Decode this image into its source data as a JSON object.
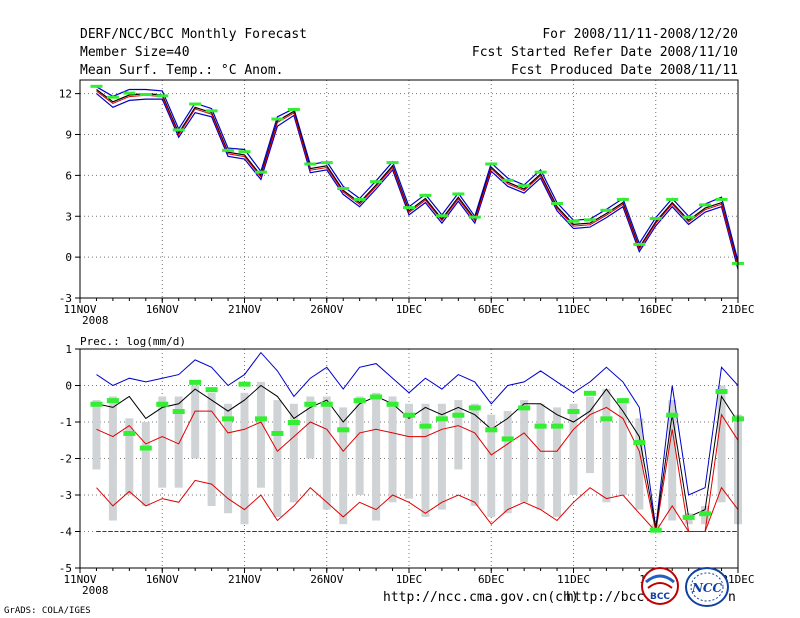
{
  "header": {
    "title": "DERF/NCC/BCC Monthly Forecast",
    "member": "Member Size=40",
    "variable": "Mean Surf. Temp.: °C Anom.",
    "period": "For 2008/11/11-2008/12/20",
    "start": "Fcst Started Refer Date 2008/11/10",
    "produced": "Fcst Produced Date 2008/11/11"
  },
  "footer": {
    "url1": "http://ncc.cma.gov.cn(ch)",
    "url2": "http://bcc.c",
    "url2_tail": "n",
    "credit": "GrADS: COLA/IGES",
    "logo_bcc": "BCC",
    "logo_ncc": "NCC"
  },
  "colors": {
    "mean": "#000000",
    "upper": "#0000cc",
    "lower": "#e00000",
    "obs": "#33ee33",
    "box": "#d0d3d6",
    "grid": "#777777"
  },
  "chart_data": [
    {
      "type": "line",
      "title": "Mean Surf. Temp.: °C Anom.",
      "x_ticks": [
        "11NOV",
        "16NOV",
        "21NOV",
        "26NOV",
        "1DEC",
        "6DEC",
        "11DEC",
        "16DEC",
        "21DEC"
      ],
      "x_sub": "2008",
      "ylim": [
        -3,
        13
      ],
      "y_ticks": [
        -3,
        0,
        3,
        6,
        9,
        12
      ],
      "series": [
        {
          "name": "upper",
          "values": [
            12.5,
            11.8,
            12.3,
            12.3,
            12.2,
            9.4,
            11.3,
            10.9,
            8.0,
            7.9,
            6.3,
            10.3,
            10.9,
            6.8,
            7.0,
            5.2,
            4.3,
            5.6,
            7.0,
            3.7,
            4.6,
            3.1,
            4.7,
            3.0,
            6.9,
            5.8,
            5.3,
            6.4,
            4.0,
            2.7,
            2.8,
            3.5,
            4.3,
            1.0,
            2.9,
            4.3,
            3.0,
            3.9,
            4.4,
            -0.3
          ]
        },
        {
          "name": "mean",
          "values": [
            12.3,
            11.4,
            11.9,
            12.0,
            11.9,
            9.1,
            11.0,
            10.6,
            7.7,
            7.5,
            6.0,
            10.0,
            10.7,
            6.5,
            6.7,
            4.9,
            4.0,
            5.3,
            6.7,
            3.4,
            4.3,
            2.8,
            4.4,
            2.8,
            6.6,
            5.5,
            5.0,
            6.1,
            3.7,
            2.4,
            2.5,
            3.2,
            4.0,
            0.7,
            2.6,
            4.0,
            2.7,
            3.6,
            4.0,
            -0.6
          ]
        },
        {
          "name": "lower",
          "values": [
            12.0,
            11.0,
            11.5,
            11.6,
            11.6,
            8.8,
            10.6,
            10.3,
            7.4,
            7.2,
            5.7,
            9.6,
            10.4,
            6.2,
            6.4,
            4.6,
            3.7,
            5.0,
            6.4,
            3.1,
            4.0,
            2.5,
            4.1,
            2.5,
            6.3,
            5.2,
            4.7,
            5.8,
            3.4,
            2.1,
            2.2,
            2.9,
            3.7,
            0.4,
            2.3,
            3.7,
            2.4,
            3.3,
            3.7,
            -0.9
          ]
        },
        {
          "name": "observed",
          "values": [
            12.5,
            11.7,
            12.0,
            11.9,
            11.8,
            9.3,
            11.2,
            10.7,
            7.8,
            7.7,
            6.2,
            10.1,
            10.8,
            6.8,
            6.9,
            5.0,
            4.2,
            5.5,
            6.9,
            3.6,
            4.5,
            3.0,
            4.6,
            2.9,
            6.8,
            5.6,
            5.2,
            6.2,
            3.9,
            2.6,
            2.7,
            3.4,
            4.2,
            0.9,
            2.8,
            4.2,
            2.9,
            3.8,
            4.2,
            -0.5
          ]
        }
      ]
    },
    {
      "type": "line",
      "title": "Prec.: log(mm/d)",
      "x_ticks": [
        "11NOV",
        "16NOV",
        "21NOV",
        "26NOV",
        "1DEC",
        "6DEC",
        "11DEC",
        "16DEC",
        "21DEC"
      ],
      "x_sub": "2008",
      "ylim": [
        -5,
        1
      ],
      "y_ticks": [
        -5,
        -4,
        -3,
        -2,
        -1,
        0,
        1
      ],
      "series": [
        {
          "name": "upper",
          "values": [
            0.3,
            0.0,
            0.2,
            0.1,
            0.2,
            0.3,
            0.7,
            0.5,
            0.0,
            0.3,
            0.9,
            0.4,
            -0.3,
            0.2,
            0.5,
            -0.1,
            0.5,
            0.6,
            0.2,
            -0.2,
            0.2,
            -0.1,
            0.3,
            0.1,
            -0.5,
            0.0,
            0.1,
            0.4,
            0.1,
            -0.2,
            0.1,
            0.5,
            0.1,
            -0.6,
            -3.9,
            0.0,
            -3.0,
            -2.8,
            0.5,
            0.0
          ]
        },
        {
          "name": "mean",
          "values": [
            -0.5,
            -0.6,
            -0.3,
            -0.9,
            -0.6,
            -0.5,
            -0.1,
            -0.4,
            -0.7,
            -0.4,
            0.0,
            -0.3,
            -0.9,
            -0.6,
            -0.4,
            -1.0,
            -0.5,
            -0.3,
            -0.5,
            -0.9,
            -0.6,
            -0.8,
            -0.6,
            -0.8,
            -1.2,
            -0.9,
            -0.5,
            -0.5,
            -0.8,
            -1.0,
            -0.7,
            -0.1,
            -0.7,
            -1.4,
            -3.9,
            -0.8,
            -3.6,
            -3.4,
            -0.3,
            -1.0
          ]
        },
        {
          "name": "lower",
          "values": [
            -1.2,
            -1.4,
            -1.1,
            -1.6,
            -1.4,
            -1.6,
            -0.7,
            -0.7,
            -1.3,
            -1.2,
            -1.0,
            -1.8,
            -1.4,
            -1.0,
            -1.2,
            -1.8,
            -1.3,
            -1.2,
            -1.3,
            -1.4,
            -1.4,
            -1.2,
            -1.1,
            -1.3,
            -1.9,
            -1.6,
            -1.3,
            -1.8,
            -1.8,
            -1.2,
            -0.8,
            -0.6,
            -0.9,
            -1.8,
            -4.0,
            -1.2,
            -4.0,
            -4.0,
            -0.8,
            -1.5
          ]
        },
        {
          "name": "lowest",
          "values": [
            -2.8,
            -3.3,
            -2.9,
            -3.3,
            -3.1,
            -3.2,
            -2.6,
            -2.7,
            -3.1,
            -3.4,
            -3.0,
            -3.7,
            -3.3,
            -2.8,
            -3.2,
            -3.6,
            -3.2,
            -3.4,
            -3.0,
            -3.2,
            -3.5,
            -3.2,
            -3.0,
            -3.2,
            -3.8,
            -3.4,
            -3.2,
            -3.4,
            -3.7,
            -3.2,
            -2.8,
            -3.1,
            -3.0,
            -3.5,
            -4.0,
            -3.3,
            -4.0,
            -4.0,
            -2.8,
            -3.4
          ]
        },
        {
          "name": "observed",
          "values": [
            -0.5,
            -0.4,
            -1.3,
            -1.7,
            -0.5,
            -0.7,
            0.1,
            -0.1,
            -0.9,
            0.05,
            -0.9,
            -1.3,
            -1.0,
            -0.5,
            -0.5,
            -1.2,
            -0.4,
            -0.3,
            -0.5,
            -0.8,
            -1.1,
            -0.9,
            -0.8,
            -0.6,
            -1.2,
            -1.45,
            -0.6,
            -1.1,
            -1.1,
            -0.7,
            -0.2,
            -0.9,
            -0.4,
            -1.55,
            -3.95,
            -0.8,
            -3.6,
            -3.5,
            -0.15,
            -0.9
          ]
        },
        {
          "name": "box_top",
          "values": [
            -0.4,
            -0.3,
            -0.9,
            -1.0,
            -0.3,
            -0.3,
            0.0,
            -0.2,
            -0.5,
            -0.2,
            0.1,
            -0.4,
            -0.5,
            -0.3,
            -0.3,
            -0.6,
            -0.3,
            -0.2,
            -0.3,
            -0.5,
            -0.5,
            -0.5,
            -0.4,
            -0.5,
            -0.8,
            -0.7,
            -0.4,
            -0.5,
            -0.6,
            -0.5,
            -0.3,
            -0.1,
            -0.4,
            -0.9,
            -3.8,
            -0.4,
            -3.5,
            -3.3,
            0.0,
            -0.8
          ]
        },
        {
          "name": "box_bottom",
          "values": [
            -2.3,
            -3.7,
            -3.0,
            -3.3,
            -2.8,
            -2.8,
            -2.0,
            -3.3,
            -3.5,
            -3.8,
            -2.8,
            -3.6,
            -3.2,
            -2.0,
            -3.4,
            -3.8,
            -3.0,
            -3.7,
            -3.2,
            -3.1,
            -3.6,
            -3.4,
            -2.3,
            -3.3,
            -3.6,
            -3.5,
            -3.2,
            -3.4,
            -3.6,
            -3.0,
            -2.4,
            -3.2,
            -3.0,
            -3.4,
            -4.0,
            -3.7,
            -3.8,
            -3.8,
            -3.2,
            -3.8
          ]
        }
      ]
    }
  ]
}
